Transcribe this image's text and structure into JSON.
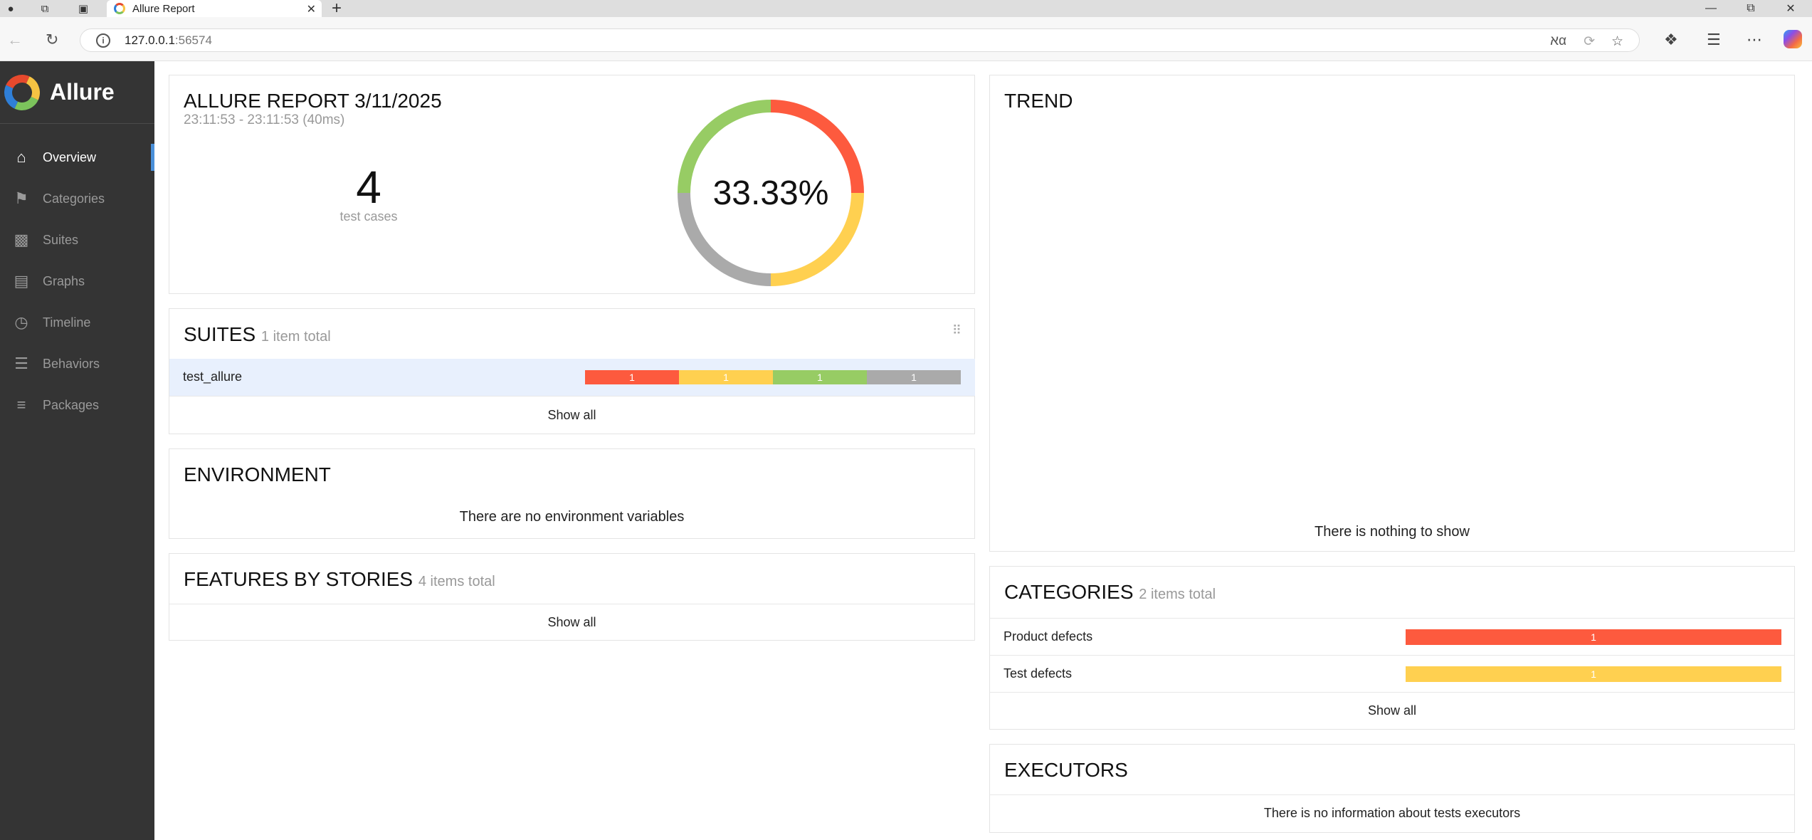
{
  "browser": {
    "tab_title": "Allure Report",
    "url_host": "127.0.0.1",
    "url_port": ":56574"
  },
  "sidebar": {
    "brand": "Allure",
    "items": [
      {
        "label": "Overview",
        "icon": "home-icon"
      },
      {
        "label": "Categories",
        "icon": "flag-icon"
      },
      {
        "label": "Suites",
        "icon": "briefcase-icon"
      },
      {
        "label": "Graphs",
        "icon": "bar-chart-icon"
      },
      {
        "label": "Timeline",
        "icon": "clock-icon"
      },
      {
        "label": "Behaviors",
        "icon": "list-icon"
      },
      {
        "label": "Packages",
        "icon": "align-left-icon"
      }
    ]
  },
  "summary": {
    "title": "ALLURE REPORT 3/11/2025",
    "time": "23:11:53 - 23:11:53 (40ms)",
    "test_count": "4",
    "test_label": "test cases",
    "success_rate": "33.33%",
    "donut_fractions": {
      "failed": 0.25,
      "broken": 0.25,
      "unknown": 0.25,
      "passed": 0.25
    }
  },
  "suites": {
    "title": "SUITES",
    "count_text": "1 item total",
    "rows": [
      {
        "name": "test_allure",
        "failed": "1",
        "broken": "1",
        "passed": "1",
        "unknown": "1"
      }
    ],
    "show_all": "Show all"
  },
  "environment": {
    "title": "ENVIRONMENT",
    "message": "There are no environment variables"
  },
  "features": {
    "title": "FEATURES BY STORIES",
    "count_text": "4 items total",
    "show_all": "Show all"
  },
  "trend": {
    "title": "TREND",
    "message": "There is nothing to show"
  },
  "categories": {
    "title": "CATEGORIES",
    "count_text": "2 items total",
    "rows": [
      {
        "name": "Product defects",
        "count": "1",
        "color": "#fd5a3e"
      },
      {
        "name": "Test defects",
        "count": "1",
        "color": "#ffd050"
      }
    ],
    "show_all": "Show all"
  },
  "executors": {
    "title": "EXECUTORS",
    "message": "There is no information about tests executors"
  },
  "colors": {
    "failed": "#fd5a3e",
    "broken": "#ffd050",
    "passed": "#97cc64",
    "unknown": "#aaaaaa",
    "active_accent": "#4a90d9"
  }
}
